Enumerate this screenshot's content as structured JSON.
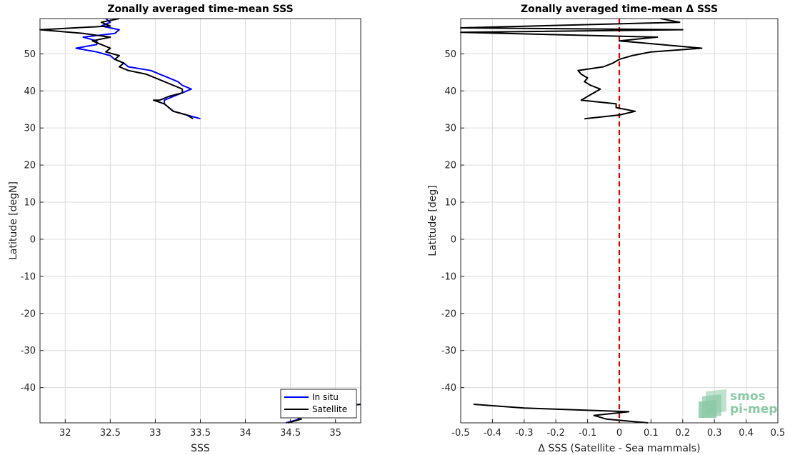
{
  "chart_data": [
    {
      "type": "line",
      "title": "Zonally averaged time-mean SSS",
      "xlabel": "SSS",
      "ylabel": "Latitude [degN]",
      "xlim": [
        31.72,
        35.28
      ],
      "ylim": [
        -49.5,
        59.5
      ],
      "xticks": [
        32,
        32.5,
        33,
        33.5,
        34,
        34.5,
        35
      ],
      "yticks": [
        -40,
        -30,
        -20,
        -10,
        0,
        10,
        20,
        30,
        40,
        50
      ],
      "grid": true,
      "legend": "bottom-right",
      "series": [
        {
          "name": "In situ",
          "color": "#0000ff",
          "points": [
            [
              32.45,
              59.5
            ],
            [
              32.5,
              58.5
            ],
            [
              32.4,
              57.5
            ],
            [
              32.6,
              56.5
            ],
            [
              32.55,
              55.5
            ],
            [
              32.2,
              54.5
            ],
            [
              32.35,
              53.5
            ],
            [
              32.35,
              52.5
            ],
            [
              32.12,
              51.5
            ],
            [
              32.35,
              50.5
            ],
            [
              32.5,
              49.5
            ],
            [
              32.55,
              48.5
            ],
            [
              32.65,
              47.5
            ],
            [
              32.7,
              46.5
            ],
            [
              32.95,
              45.5
            ],
            [
              33.05,
              44.5
            ],
            [
              33.15,
              43.5
            ],
            [
              33.25,
              42.5
            ],
            [
              33.3,
              41.5
            ],
            [
              33.4,
              40.5
            ],
            [
              33.3,
              39.5
            ],
            [
              33.2,
              38.5
            ],
            [
              33.1,
              37.5
            ],
            [
              33.1,
              36.5
            ],
            [
              33.15,
              35.5
            ],
            [
              33.2,
              34.5
            ],
            [
              33.35,
              33.5
            ],
            [
              33.5,
              32.5
            ]
          ]
        },
        {
          "name": "Satellite",
          "color": "#000000",
          "points": [
            [
              32.6,
              59.5
            ],
            [
              32.4,
              58.5
            ],
            [
              32.5,
              57.5
            ],
            [
              31.72,
              56.5
            ],
            [
              32.2,
              55.5
            ],
            [
              32.5,
              54.5
            ],
            [
              32.3,
              53.5
            ],
            [
              32.4,
              52.5
            ],
            [
              32.5,
              51.5
            ],
            [
              32.45,
              50.5
            ],
            [
              32.6,
              49.5
            ],
            [
              32.55,
              48.5
            ],
            [
              32.65,
              47.5
            ],
            [
              32.6,
              46.5
            ],
            [
              32.7,
              45.5
            ],
            [
              32.9,
              44.5
            ],
            [
              33.0,
              43.5
            ],
            [
              33.1,
              42.5
            ],
            [
              33.2,
              41.5
            ],
            [
              33.3,
              40.5
            ],
            [
              33.3,
              39.5
            ],
            [
              33.15,
              38.5
            ],
            [
              33.05,
              37.5
            ],
            [
              32.98,
              37.5
            ],
            [
              33.1,
              36.5
            ],
            [
              33.15,
              35.5
            ],
            [
              33.2,
              34.5
            ],
            [
              33.35,
              33.5
            ],
            [
              33.42,
              32.5
            ]
          ]
        },
        {
          "name": "",
          "color": "#0000ff",
          "points": [
            [
              35.28,
              -44.5
            ],
            [
              34.9,
              -45.5
            ],
            [
              34.6,
              -46.5
            ],
            [
              34.55,
              -47.5
            ],
            [
              34.6,
              -48.5
            ],
            [
              34.45,
              -49.5
            ]
          ]
        },
        {
          "name": "",
          "color": "#000000",
          "points": [
            [
              35.28,
              -44.5
            ],
            [
              34.9,
              -45.5
            ],
            [
              34.62,
              -46.5
            ],
            [
              34.56,
              -47.5
            ],
            [
              34.62,
              -48.5
            ],
            [
              34.47,
              -49.5
            ]
          ]
        }
      ]
    },
    {
      "type": "line",
      "title": "Zonally averaged time-mean Δ SSS",
      "xlabel": "Δ SSS (Satellite - Sea mammals)",
      "ylabel": "Latitude [deg]",
      "xlim": [
        -0.5,
        0.5
      ],
      "ylim": [
        -49.5,
        59.5
      ],
      "xticks": [
        -0.5,
        -0.4,
        -0.3,
        -0.2,
        -0.1,
        0,
        0.1,
        0.2,
        0.3,
        0.4,
        0.5
      ],
      "yticks": [
        -40,
        -30,
        -20,
        -10,
        0,
        10,
        20,
        30,
        40,
        50
      ],
      "grid": true,
      "reference_line": {
        "x": 0,
        "color": "#e00000",
        "style": "dashed"
      },
      "series": [
        {
          "name": "",
          "color": "#000000",
          "points": [
            [
              0.13,
              59.5
            ],
            [
              0.19,
              58.5
            ],
            [
              -0.5,
              57.0
            ],
            [
              0.2,
              56.5
            ],
            [
              -0.5,
              55.8
            ],
            [
              0.12,
              54.5
            ],
            [
              0.0,
              53.5
            ],
            [
              0.26,
              51.5
            ],
            [
              0.1,
              50.5
            ],
            [
              0.04,
              49.5
            ],
            [
              0.0,
              48.5
            ],
            [
              -0.02,
              47.5
            ],
            [
              -0.05,
              46.5
            ],
            [
              -0.13,
              45.5
            ],
            [
              -0.12,
              44.5
            ],
            [
              -0.1,
              43.5
            ],
            [
              -0.11,
              42.5
            ],
            [
              -0.09,
              41.5
            ],
            [
              -0.06,
              40.5
            ],
            [
              -0.08,
              39.5
            ],
            [
              -0.1,
              38.5
            ],
            [
              -0.12,
              37.5
            ],
            [
              -0.01,
              36.5
            ],
            [
              -0.01,
              35.5
            ],
            [
              0.05,
              34.5
            ],
            [
              0.0,
              33.5
            ],
            [
              -0.11,
              32.5
            ]
          ]
        },
        {
          "name": "",
          "color": "#000000",
          "points": [
            [
              -0.46,
              -44.5
            ],
            [
              -0.3,
              -45.5
            ],
            [
              0.03,
              -46.5
            ],
            [
              -0.08,
              -47.5
            ],
            [
              -0.04,
              -48.5
            ],
            [
              0.09,
              -49.5
            ]
          ]
        }
      ]
    }
  ],
  "legend": {
    "entries": [
      "In situ",
      "Satellite"
    ]
  },
  "logo": {
    "line1": "smos",
    "line2": "pi-mep"
  }
}
